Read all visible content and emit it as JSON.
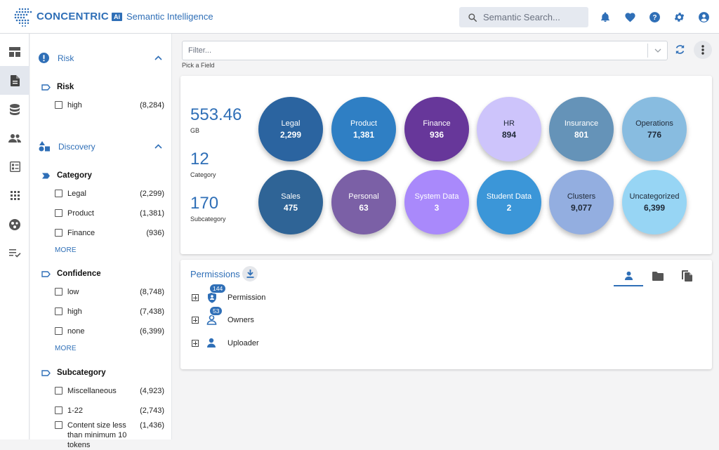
{
  "header": {
    "brand": "CONCENTRIC",
    "brand_badge": "Ai",
    "brand_subtitle": "Semantic Intelligence",
    "search_placeholder": "Semantic Search..."
  },
  "filter_panel": {
    "risk": {
      "title": "Risk",
      "group": "Risk",
      "options": [
        {
          "label": "high",
          "count": "(8,284)"
        }
      ]
    },
    "discovery": {
      "title": "Discovery",
      "category": {
        "title": "Category",
        "options": [
          {
            "label": "Legal",
            "count": "(2,299)"
          },
          {
            "label": "Product",
            "count": "(1,381)"
          },
          {
            "label": "Finance",
            "count": "(936)"
          }
        ],
        "more": "MORE"
      },
      "confidence": {
        "title": "Confidence",
        "options": [
          {
            "label": "low",
            "count": "(8,748)"
          },
          {
            "label": "high",
            "count": "(7,438)"
          },
          {
            "label": "none",
            "count": "(6,399)"
          }
        ],
        "more": "MORE"
      },
      "subcategory": {
        "title": "Subcategory",
        "options": [
          {
            "label": "Miscellaneous",
            "count": "(4,923)"
          },
          {
            "label": "1-22",
            "count": "(2,743)"
          },
          {
            "label": "Content size less than minimum 10 tokens",
            "count": "(1,436)"
          }
        ]
      }
    }
  },
  "filter_bar": {
    "placeholder": "Filter...",
    "hint": "Pick a Field"
  },
  "stats": [
    {
      "value": "553.46",
      "unit": "GB"
    },
    {
      "value": "12",
      "unit": "Category"
    },
    {
      "value": "170",
      "unit": "Subcategory"
    }
  ],
  "categories": [
    {
      "label": "Legal",
      "value": "2,299",
      "color": "#2b64a0"
    },
    {
      "label": "Product",
      "value": "1,381",
      "color": "#2f7fc4"
    },
    {
      "label": "Finance",
      "value": "936",
      "color": "#67379a"
    },
    {
      "label": "HR",
      "value": "894",
      "color": "#cdc4fb"
    },
    {
      "label": "Insurance",
      "value": "801",
      "color": "#6593b8"
    },
    {
      "label": "Operations",
      "value": "776",
      "color": "#88bce0"
    },
    {
      "label": "Sales",
      "value": "475",
      "color": "#2f6496"
    },
    {
      "label": "Personal",
      "value": "63",
      "color": "#7b60a6"
    },
    {
      "label": "System Data",
      "value": "3",
      "color": "#a989fb"
    },
    {
      "label": "Student Data",
      "value": "2",
      "color": "#3b96d8"
    },
    {
      "label": "Clusters",
      "value": "9,077",
      "color": "#93aee0"
    },
    {
      "label": "Uncategorized",
      "value": "6,399",
      "color": "#97d5f4"
    }
  ],
  "permissions": {
    "title": "Permissions",
    "rows": [
      {
        "label": "Permission",
        "badge": "144"
      },
      {
        "label": "Owners",
        "badge": "53"
      },
      {
        "label": "Uploader",
        "badge": ""
      }
    ]
  }
}
